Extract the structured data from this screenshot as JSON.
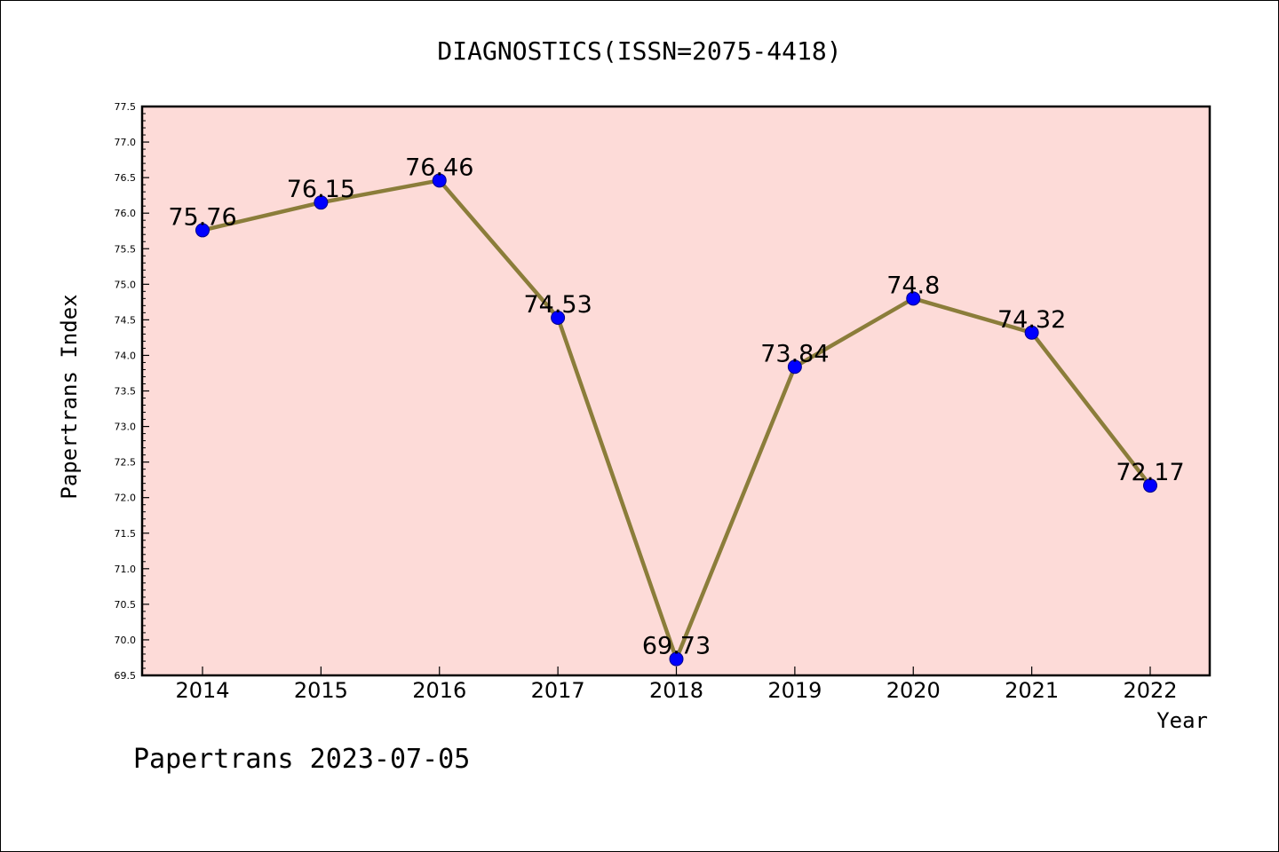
{
  "chart_data": {
    "type": "line",
    "title": "DIAGNOSTICS(ISSN=2075-4418)",
    "xlabel": "Year",
    "ylabel": "Papertrans Index",
    "categories": [
      "2014",
      "2015",
      "2016",
      "2017",
      "2018",
      "2019",
      "2020",
      "2021",
      "2022"
    ],
    "values": [
      75.76,
      76.15,
      76.46,
      74.53,
      69.73,
      73.84,
      74.8,
      74.32,
      72.17
    ],
    "data_labels": [
      "75.76",
      "76.15",
      "76.46",
      "74.53",
      "69.73",
      "73.84",
      "74.8",
      "74.32",
      "72.17"
    ],
    "ylim": [
      69.5,
      77.5
    ],
    "yticks": [
      "69.5",
      "70.0",
      "70.5",
      "71.0",
      "71.5",
      "72.0",
      "72.5",
      "73.0",
      "73.5",
      "74.0",
      "74.5",
      "75.0",
      "75.5",
      "76.0",
      "76.5",
      "77.0",
      "77.5"
    ],
    "grid": false,
    "legend": "none",
    "colors": {
      "plot_background": "#fddbd8",
      "line": "#8b7d3a",
      "marker": "#0000ff"
    }
  },
  "footer": "Papertrans 2023-07-05"
}
